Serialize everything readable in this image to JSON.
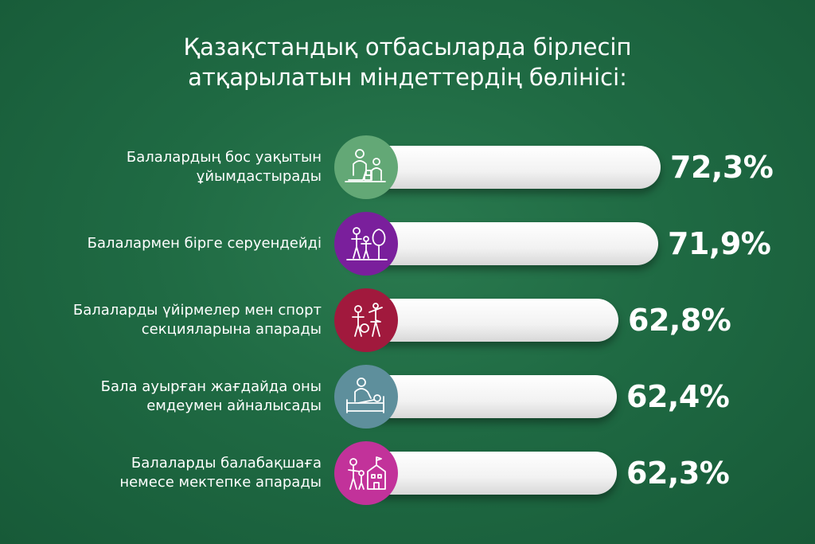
{
  "chart_data": {
    "type": "bar",
    "orientation": "horizontal",
    "title_lines": [
      "Қазақстандық отбасыларда бірлесіп",
      "атқарылатын міндеттердің бөлінісі:"
    ],
    "categories": [
      [
        "Балалардың бос уақытын",
        "ұйымдастырады"
      ],
      [
        "Балалармен бірге серуендейді"
      ],
      [
        "Балаларды үйірмелер мен спорт",
        "секцияларына апарады"
      ],
      [
        "Бала ауырған жағдайда оны",
        "емдеумен айналысады"
      ],
      [
        "Балаларды балабақшаға",
        "немесе мектепке апарады"
      ]
    ],
    "values": [
      72.3,
      71.9,
      62.8,
      62.4,
      62.3
    ],
    "value_labels": [
      "72,3%",
      "71,9%",
      "62,8%",
      "62,4%",
      "62,3%"
    ],
    "unit": "%",
    "colors": [
      "#63a876",
      "#7a1f9c",
      "#a1193d",
      "#5e8f9c",
      "#c2329a"
    ],
    "icons": [
      "parent-child-playing-icon",
      "family-walk-tree-icon",
      "children-sports-ballet-icon",
      "parent-caring-sick-child-icon",
      "parent-child-school-icon"
    ],
    "legend": "none",
    "grid": false
  }
}
